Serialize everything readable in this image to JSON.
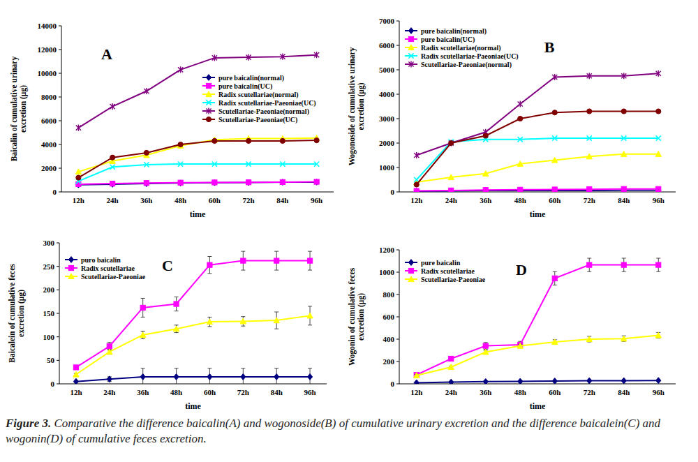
{
  "chart_data": [
    {
      "type": "line",
      "title": "A",
      "xlabel": "time",
      "ylabel": "Baicalin of cumulative urinary excretion (μg)",
      "categories": [
        "12h",
        "24h",
        "36h",
        "48h",
        "60h",
        "72h",
        "84h",
        "96h"
      ],
      "ylim": [
        0,
        14000
      ],
      "yticks": [
        0,
        2000,
        4000,
        6000,
        8000,
        10000,
        12000,
        14000
      ],
      "grid": false,
      "legend": "right",
      "series": [
        {
          "name": "pure baicalin(normal)",
          "color": "#000080",
          "marker": "diamond",
          "values": [
            600,
            650,
            700,
            750,
            780,
            800,
            820,
            830
          ]
        },
        {
          "name": "pure baicalin(UC)",
          "color": "#ff00ff",
          "marker": "square",
          "values": [
            650,
            700,
            750,
            780,
            800,
            810,
            830,
            850
          ]
        },
        {
          "name": "Radix scutellariae(normal)",
          "color": "#ffff00",
          "marker": "triangle",
          "values": [
            1700,
            2600,
            3100,
            3900,
            4400,
            4500,
            4500,
            4550
          ]
        },
        {
          "name": "Radix scutellariae-Paeoniae(UC)",
          "color": "#00ffff",
          "marker": "x",
          "values": [
            900,
            2100,
            2300,
            2350,
            2350,
            2350,
            2350,
            2350
          ]
        },
        {
          "name": "Scutellariae-Paeoniae(normal)",
          "color": "#800080",
          "marker": "star",
          "values": [
            5400,
            7200,
            8500,
            10300,
            11300,
            11350,
            11400,
            11550
          ]
        },
        {
          "name": "Scutellariae-Paeoniae(UC)",
          "color": "#800000",
          "marker": "circle",
          "values": [
            1200,
            2900,
            3300,
            4000,
            4300,
            4300,
            4300,
            4350
          ]
        }
      ]
    },
    {
      "type": "line",
      "title": "B",
      "xlabel": "time",
      "ylabel": "Wogonoside of cumulative urinary excretion (μg)",
      "categories": [
        "12h",
        "24h",
        "36h",
        "48h",
        "60h",
        "72h",
        "84h",
        "96h"
      ],
      "ylim": [
        0,
        7000
      ],
      "yticks": [
        0,
        1000,
        2000,
        3000,
        4000,
        5000,
        6000,
        7000
      ],
      "grid": false,
      "legend": "upper left",
      "series": [
        {
          "name": "pure baicalin(normal)",
          "color": "#000080",
          "marker": "diamond",
          "values": [
            30,
            40,
            60,
            60,
            60,
            60,
            70,
            70
          ]
        },
        {
          "name": "pure baicalin(UC)",
          "color": "#ff00ff",
          "marker": "square",
          "values": [
            40,
            60,
            80,
            90,
            100,
            110,
            120,
            120
          ]
        },
        {
          "name": "Radix scutellariae(normal)",
          "color": "#ffff00",
          "marker": "triangle",
          "values": [
            400,
            600,
            750,
            1150,
            1300,
            1450,
            1550,
            1550
          ]
        },
        {
          "name": "Radix scutellariae-Paeoniae(UC)",
          "color": "#00ffff",
          "marker": "x",
          "values": [
            500,
            2050,
            2150,
            2150,
            2200,
            2200,
            2200,
            2200
          ]
        },
        {
          "name": "Scutellariae-Paeoniae(normal)",
          "color": "#800080",
          "marker": "star",
          "values": [
            1500,
            2000,
            2450,
            3600,
            4700,
            4750,
            4750,
            4850
          ]
        },
        {
          "color": "#800000",
          "marker": "circle",
          "values": [
            300,
            2000,
            2300,
            3000,
            3250,
            3300,
            3300,
            3300
          ]
        }
      ]
    },
    {
      "type": "line",
      "title": "C",
      "xlabel": "time",
      "ylabel": "Baicalein of cumulative feces excretion (μg)",
      "categories": [
        "12h",
        "24h",
        "36h",
        "48h",
        "60h",
        "72h",
        "84h",
        "96h"
      ],
      "ylim": [
        0,
        300
      ],
      "yticks": [
        0,
        50,
        100,
        150,
        200,
        250,
        300
      ],
      "grid": false,
      "legend": "upper left",
      "series": [
        {
          "name": "puro baicalin",
          "color": "#000080",
          "marker": "diamond",
          "values": [
            5,
            10,
            15,
            15,
            15,
            15,
            15,
            15
          ],
          "errors": [
            0,
            5,
            18,
            18,
            18,
            18,
            18,
            18
          ]
        },
        {
          "name": "Radix scutellariae",
          "color": "#ff00ff",
          "marker": "square",
          "values": [
            35,
            80,
            162,
            170,
            253,
            262,
            262,
            262
          ],
          "errors": [
            3,
            8,
            20,
            15,
            18,
            20,
            20,
            20
          ]
        },
        {
          "name": "Scutellariae-Paeoniae",
          "color": "#ffff00",
          "marker": "triangle",
          "values": [
            20,
            68,
            104,
            117,
            132,
            133,
            135,
            145
          ],
          "errors": [
            2,
            5,
            8,
            8,
            10,
            10,
            18,
            20
          ]
        }
      ]
    },
    {
      "type": "line",
      "title": "D",
      "xlabel": "time",
      "ylabel": "Wogonin of cumulative feces excretion (μg)",
      "categories": [
        "12h",
        "24h",
        "36h",
        "48h",
        "60h",
        "72h",
        "84h",
        "96h"
      ],
      "ylim": [
        0,
        1200
      ],
      "yticks": [
        0,
        200,
        400,
        600,
        800,
        1000,
        1200
      ],
      "grid": false,
      "legend": "upper left",
      "series": [
        {
          "name": "pure baicalin",
          "color": "#000080",
          "marker": "diamond",
          "values": [
            10,
            15,
            20,
            22,
            25,
            28,
            28,
            30
          ],
          "errors": [
            5,
            5,
            5,
            5,
            5,
            5,
            5,
            5
          ]
        },
        {
          "name": "Radix scutellariae",
          "color": "#ff00ff",
          "marker": "square",
          "values": [
            80,
            225,
            340,
            350,
            945,
            1065,
            1065,
            1065
          ],
          "errors": [
            10,
            20,
            30,
            30,
            60,
            60,
            60,
            60
          ]
        },
        {
          "name": "Scutellariae-Paeoniae",
          "color": "#ffff00",
          "marker": "triangle",
          "values": [
            75,
            150,
            285,
            340,
            375,
            400,
            405,
            435
          ],
          "errors": [
            10,
            10,
            15,
            15,
            20,
            25,
            25,
            25
          ]
        }
      ]
    }
  ],
  "caption": {
    "label": "Figure 3.",
    "text": "Comparative the difference baicalin(A) and wogonoside(B) of cumulative urinary excretion and the difference baicalein(C) and wogonin(D) of cumulative feces excretion."
  }
}
